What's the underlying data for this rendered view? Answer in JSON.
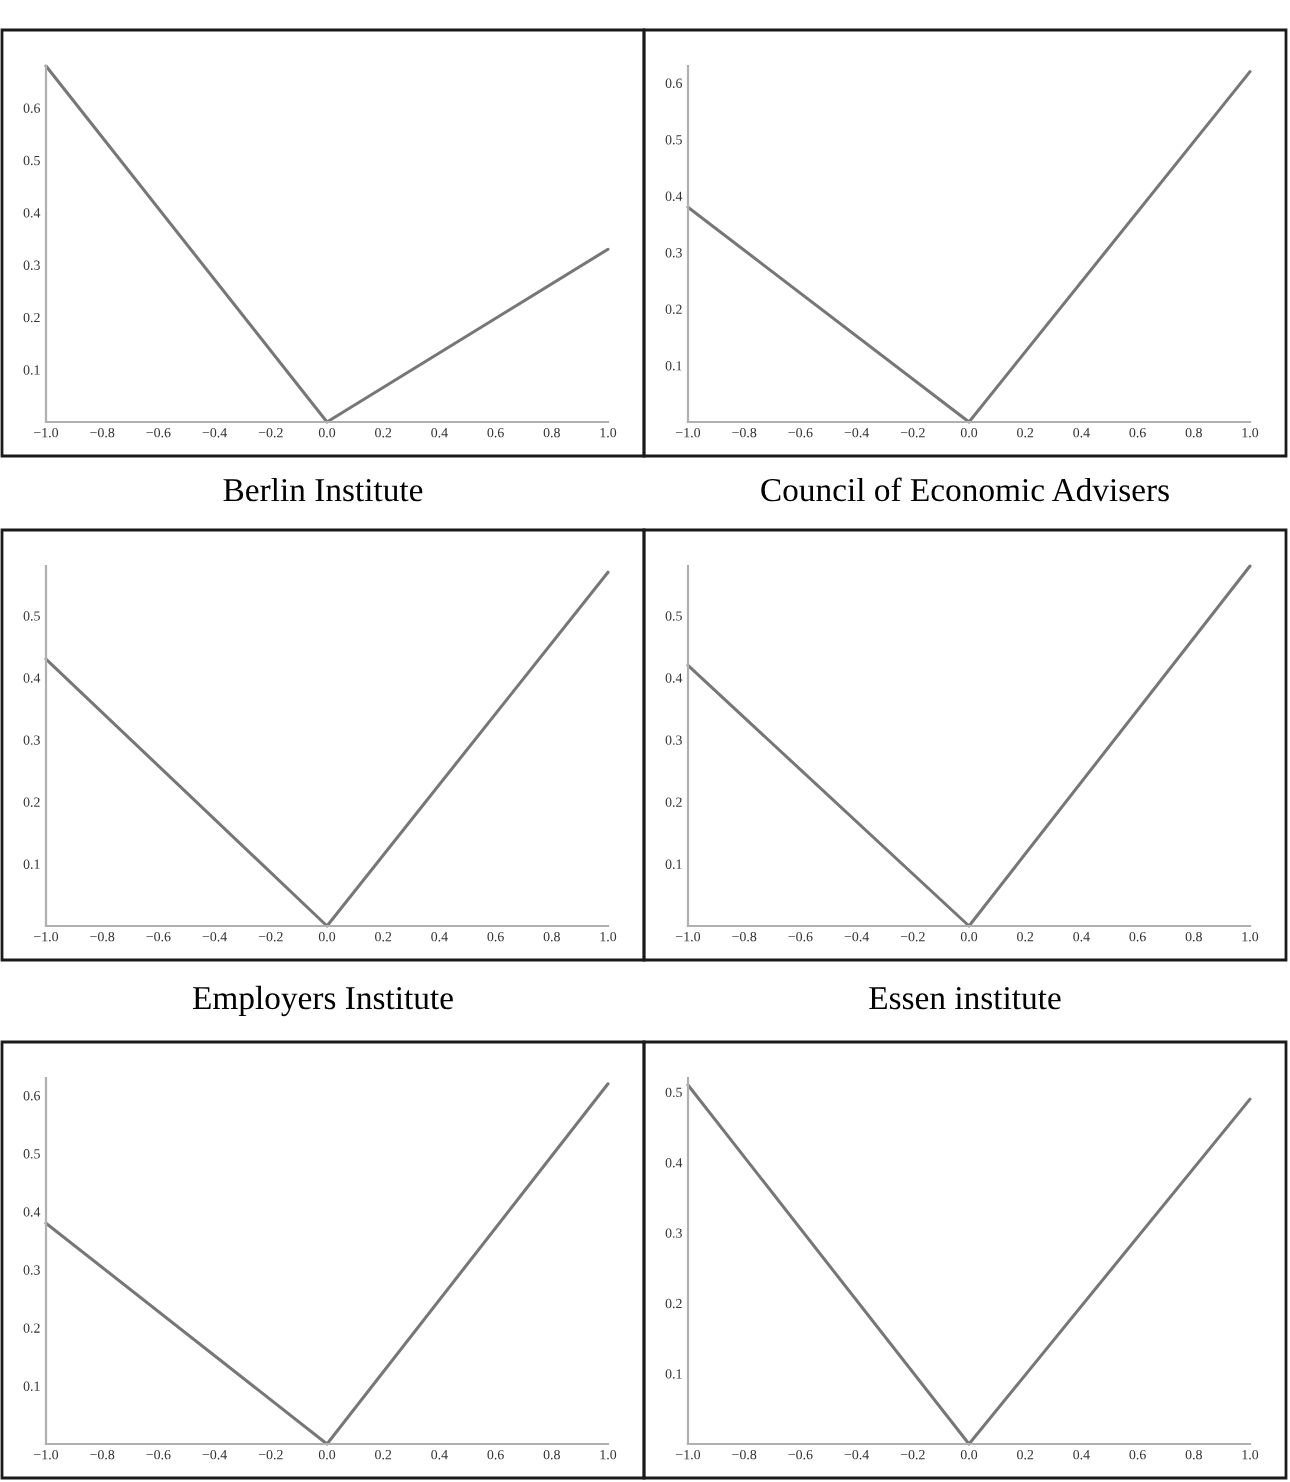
{
  "chart_data": [
    {
      "type": "line",
      "title": "Berlin Institute",
      "x": [
        -1.0,
        0.0,
        1.0
      ],
      "series": [
        {
          "color": "#777777",
          "values": [
            0.68,
            0,
            0.33
          ]
        }
      ],
      "xlim": [
        -1.0,
        1.0
      ],
      "ylim": [
        0,
        0.68
      ],
      "xticks": [
        {
          "value": -1.0,
          "label": "−1.0"
        },
        {
          "value": -0.8,
          "label": "−0.8"
        },
        {
          "value": -0.6,
          "label": "−0.6"
        },
        {
          "value": -0.4,
          "label": "−0.4"
        },
        {
          "value": -0.2,
          "label": "−0.2"
        },
        {
          "value": 0.0,
          "label": "0.0"
        },
        0.2,
        0.4,
        0.6,
        0.8,
        {
          "value": 1.0,
          "label": "1.0"
        }
      ],
      "yticks": [
        0.1,
        0.2,
        0.3,
        0.4,
        0.5,
        0.6
      ]
    },
    {
      "type": "line",
      "title": "Council of Economic Advisers",
      "x": [
        -1.0,
        0.0,
        1.0
      ],
      "series": [
        {
          "color": "#777777",
          "values": [
            0.38,
            0,
            0.62
          ]
        }
      ],
      "xlim": [
        -1.0,
        1.0
      ],
      "ylim": [
        0,
        0.63
      ],
      "xticks": [
        {
          "value": -1.0,
          "label": "−1.0"
        },
        {
          "value": -0.8,
          "label": "−0.8"
        },
        {
          "value": -0.6,
          "label": "−0.6"
        },
        {
          "value": -0.4,
          "label": "−0.4"
        },
        {
          "value": -0.2,
          "label": "−0.2"
        },
        {
          "value": 0.0,
          "label": "0.0"
        },
        0.2,
        0.4,
        0.6,
        0.8,
        {
          "value": 1.0,
          "label": "1.0"
        }
      ],
      "yticks": [
        0.1,
        0.2,
        0.3,
        0.4,
        0.5,
        0.6
      ]
    },
    {
      "type": "line",
      "title": "Employers Institute",
      "x": [
        -1.0,
        0.0,
        1.0
      ],
      "series": [
        {
          "color": "#777777",
          "values": [
            0.43,
            0,
            0.57
          ]
        }
      ],
      "xlim": [
        -1.0,
        1.0
      ],
      "ylim": [
        0,
        0.58
      ],
      "xticks": [
        {
          "value": -1.0,
          "label": "−1.0"
        },
        {
          "value": -0.8,
          "label": "−0.8"
        },
        {
          "value": -0.6,
          "label": "−0.6"
        },
        {
          "value": -0.4,
          "label": "−0.4"
        },
        {
          "value": -0.2,
          "label": "−0.2"
        },
        {
          "value": 0.0,
          "label": "0.0"
        },
        0.2,
        0.4,
        0.6,
        0.8,
        {
          "value": 1.0,
          "label": "1.0"
        }
      ],
      "yticks": [
        0.1,
        0.2,
        0.3,
        0.4,
        0.5
      ]
    },
    {
      "type": "line",
      "title": "Essen institute",
      "x": [
        -1.0,
        0.0,
        1.0
      ],
      "series": [
        {
          "color": "#777777",
          "values": [
            0.42,
            0,
            0.58
          ]
        }
      ],
      "xlim": [
        -1.0,
        1.0
      ],
      "ylim": [
        0,
        0.58
      ],
      "xticks": [
        {
          "value": -1.0,
          "label": "−1.0"
        },
        {
          "value": -0.8,
          "label": "−0.8"
        },
        {
          "value": -0.6,
          "label": "−0.6"
        },
        {
          "value": -0.4,
          "label": "−0.4"
        },
        {
          "value": -0.2,
          "label": "−0.2"
        },
        {
          "value": 0.0,
          "label": "0.0"
        },
        0.2,
        0.4,
        0.6,
        0.8,
        {
          "value": 1.0,
          "label": "1.0"
        }
      ],
      "yticks": [
        0.1,
        0.2,
        0.3,
        0.4,
        0.5
      ]
    },
    {
      "type": "line",
      "x": [
        -1.0,
        0.0,
        1.0
      ],
      "series": [
        {
          "color": "#777777",
          "values": [
            0.38,
            0,
            0.62
          ]
        }
      ],
      "xlim": [
        -1.0,
        1.0
      ],
      "ylim": [
        0,
        0.63
      ],
      "xticks": [
        {
          "value": -1.0,
          "label": "−1.0"
        },
        {
          "value": -0.8,
          "label": "−0.8"
        },
        {
          "value": -0.6,
          "label": "−0.6"
        },
        {
          "value": -0.4,
          "label": "−0.4"
        },
        {
          "value": -0.2,
          "label": "−0.2"
        },
        {
          "value": 0.0,
          "label": "0.0"
        },
        0.2,
        0.4,
        0.6,
        0.8,
        {
          "value": 1.0,
          "label": "1.0"
        }
      ],
      "yticks": [
        0.1,
        0.2,
        0.3,
        0.4,
        0.5,
        0.6
      ]
    },
    {
      "type": "line",
      "x": [
        -1.0,
        0.0,
        1.0
      ],
      "series": [
        {
          "color": "#777777",
          "values": [
            0.51,
            0,
            0.49
          ]
        }
      ],
      "xlim": [
        -1.0,
        1.0
      ],
      "ylim": [
        0,
        0.52
      ],
      "xticks": [
        {
          "value": -1.0,
          "label": "−1.0"
        },
        {
          "value": -0.8,
          "label": "−0.8"
        },
        {
          "value": -0.6,
          "label": "−0.6"
        },
        {
          "value": -0.4,
          "label": "−0.4"
        },
        {
          "value": -0.2,
          "label": "−0.2"
        },
        {
          "value": 0.0,
          "label": "0.0"
        },
        0.2,
        0.4,
        0.6,
        0.8,
        {
          "value": 1.0,
          "label": "1.0"
        }
      ],
      "yticks": [
        0.1,
        0.2,
        0.3,
        0.4,
        0.5
      ]
    }
  ]
}
